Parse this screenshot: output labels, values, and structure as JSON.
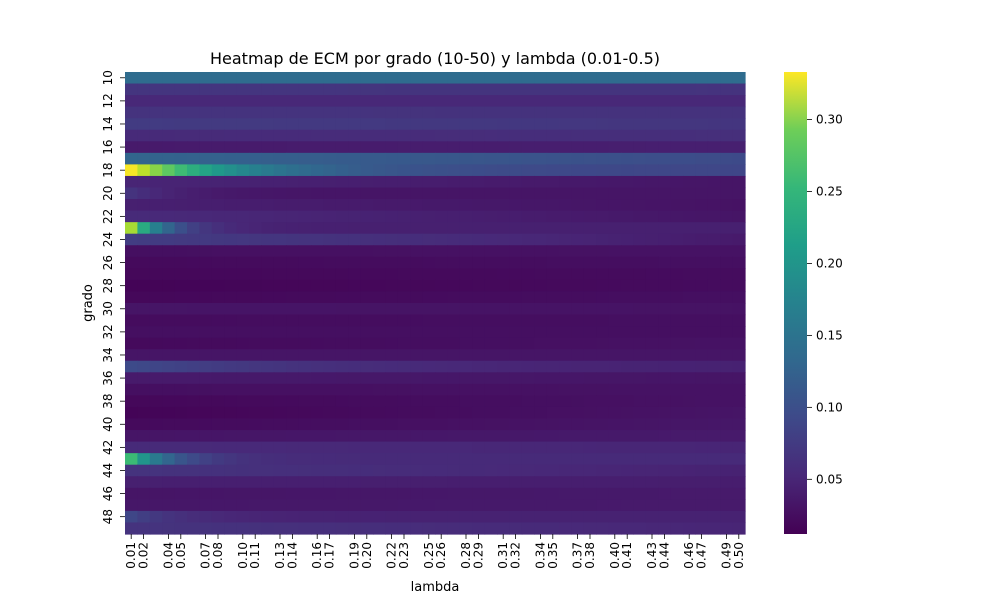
{
  "chart_data": {
    "type": "heatmap",
    "title": "Heatmap de ECM por grado (10-50) y lambda (0.01-0.5)",
    "xlabel": "lambda",
    "ylabel": "grado",
    "colormap": "viridis",
    "x_ticks": [
      "0.01",
      "0.02",
      "0.04",
      "0.05",
      "0.07",
      "0.08",
      "0.10",
      "0.11",
      "0.13",
      "0.14",
      "0.16",
      "0.17",
      "0.19",
      "0.20",
      "0.22",
      "0.23",
      "0.25",
      "0.26",
      "0.28",
      "0.29",
      "0.31",
      "0.32",
      "0.34",
      "0.35",
      "0.37",
      "0.38",
      "0.40",
      "0.41",
      "0.43",
      "0.44",
      "0.46",
      "0.47",
      "0.49",
      "0.50"
    ],
    "y_ticks": [
      "10",
      "12",
      "14",
      "16",
      "18",
      "20",
      "22",
      "24",
      "26",
      "28",
      "30",
      "32",
      "34",
      "36",
      "38",
      "40",
      "42",
      "44",
      "46",
      "48"
    ],
    "grado": [
      10,
      11,
      12,
      13,
      14,
      15,
      16,
      17,
      18,
      19,
      20,
      21,
      22,
      23,
      24,
      25,
      26,
      27,
      28,
      29,
      30,
      31,
      32,
      33,
      34,
      35,
      36,
      37,
      38,
      39,
      40,
      41,
      42,
      43,
      44,
      45,
      46,
      47,
      48,
      49
    ],
    "lambda_range": [
      0.01,
      0.5
    ],
    "lambda_count": 50,
    "row_profiles": [
      {
        "grado": 10,
        "start": 0.125,
        "end": 0.125
      },
      {
        "grado": 11,
        "start": 0.062,
        "end": 0.06
      },
      {
        "grado": 12,
        "start": 0.048,
        "end": 0.048
      },
      {
        "grado": 13,
        "start": 0.06,
        "end": 0.058
      },
      {
        "grado": 14,
        "start": 0.068,
        "end": 0.062
      },
      {
        "grado": 15,
        "start": 0.05,
        "end": 0.055
      },
      {
        "grado": 16,
        "start": 0.035,
        "end": 0.04
      },
      {
        "grado": 17,
        "start": 0.115,
        "end": 0.085
      },
      {
        "grado": 18,
        "start": 0.33,
        "end": 0.08,
        "decay": 0.08
      },
      {
        "grado": 19,
        "start": 0.045,
        "end": 0.03
      },
      {
        "grado": 20,
        "start": 0.06,
        "end": 0.03,
        "decay": 0.04
      },
      {
        "grado": 21,
        "start": 0.04,
        "end": 0.028
      },
      {
        "grado": 22,
        "start": 0.05,
        "end": 0.03
      },
      {
        "grado": 23,
        "start": 0.29,
        "end": 0.04,
        "decay": 0.025
      },
      {
        "grado": 24,
        "start": 0.07,
        "end": 0.035
      },
      {
        "grado": 25,
        "start": 0.025,
        "end": 0.028
      },
      {
        "grado": 26,
        "start": 0.02,
        "end": 0.025
      },
      {
        "grado": 27,
        "start": 0.018,
        "end": 0.022
      },
      {
        "grado": 28,
        "start": 0.015,
        "end": 0.022
      },
      {
        "grado": 29,
        "start": 0.018,
        "end": 0.025
      },
      {
        "grado": 30,
        "start": 0.03,
        "end": 0.028
      },
      {
        "grado": 31,
        "start": 0.022,
        "end": 0.025
      },
      {
        "grado": 32,
        "start": 0.025,
        "end": 0.025
      },
      {
        "grado": 33,
        "start": 0.02,
        "end": 0.028
      },
      {
        "grado": 34,
        "start": 0.03,
        "end": 0.03
      },
      {
        "grado": 35,
        "start": 0.085,
        "end": 0.04,
        "decay": 0.15
      },
      {
        "grado": 36,
        "start": 0.035,
        "end": 0.03
      },
      {
        "grado": 37,
        "start": 0.025,
        "end": 0.028
      },
      {
        "grado": 38,
        "start": 0.018,
        "end": 0.028
      },
      {
        "grado": 39,
        "start": 0.015,
        "end": 0.03
      },
      {
        "grado": 40,
        "start": 0.02,
        "end": 0.032
      },
      {
        "grado": 41,
        "start": 0.03,
        "end": 0.035
      },
      {
        "grado": 42,
        "start": 0.05,
        "end": 0.045
      },
      {
        "grado": 43,
        "start": 0.23,
        "end": 0.05,
        "decay": 0.03
      },
      {
        "grado": 44,
        "start": 0.06,
        "end": 0.042
      },
      {
        "grado": 45,
        "start": 0.04,
        "end": 0.038
      },
      {
        "grado": 46,
        "start": 0.03,
        "end": 0.035
      },
      {
        "grado": 47,
        "start": 0.032,
        "end": 0.035
      },
      {
        "grado": 48,
        "start": 0.08,
        "end": 0.042,
        "decay": 0.04
      },
      {
        "grado": 49,
        "start": 0.06,
        "end": 0.045
      }
    ],
    "vmin": 0.012,
    "vmax": 0.333,
    "colorbar_ticks": [
      "0.05",
      "0.10",
      "0.15",
      "0.20",
      "0.25",
      "0.30"
    ]
  }
}
